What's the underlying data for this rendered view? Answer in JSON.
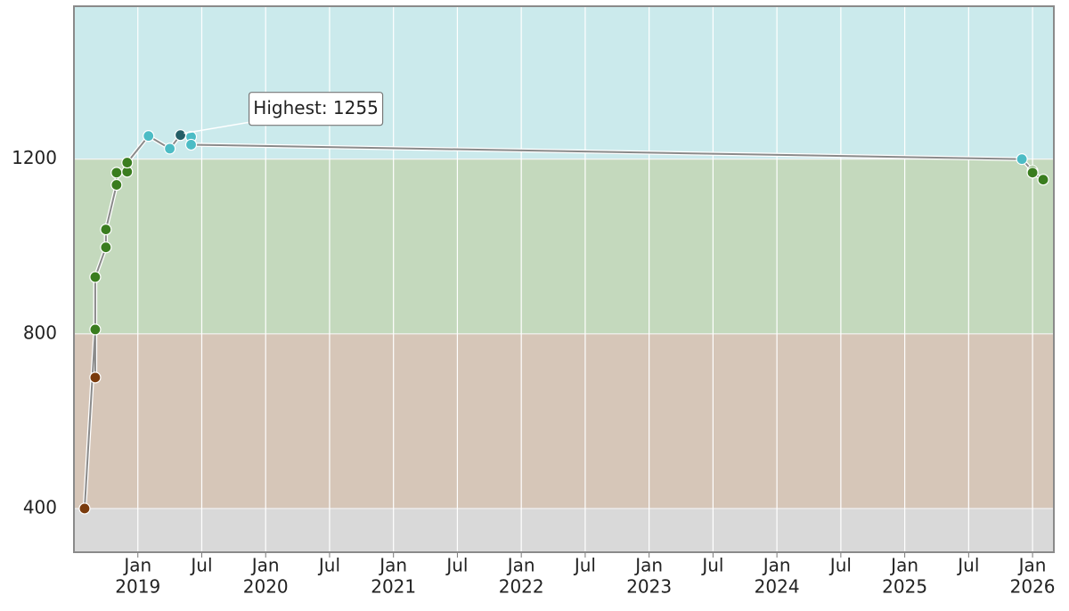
{
  "chart_data": {
    "type": "line",
    "x": [
      "2018-08",
      "2018-09",
      "2018-09",
      "2018-09",
      "2018-10",
      "2018-10",
      "2018-11",
      "2018-11",
      "2018-12",
      "2018-12",
      "2019-02",
      "2019-04",
      "2019-05",
      "2019-06",
      "2019-06",
      "2025-12",
      "2026-01",
      "2026-01",
      "2026-02"
    ],
    "series": [
      {
        "color": "#8a8a8a",
        "values": [
          400,
          810,
          700,
          930,
          998,
          1039,
          1141,
          1169,
          1171,
          1192,
          1253,
          1224,
          1255,
          1251,
          1233,
          1200,
          1173,
          1169,
          1153
        ]
      }
    ],
    "xlim": [
      "2018-07",
      "2026-03"
    ],
    "xticks": [
      {
        "value": "2019-01",
        "label": "Jan",
        "year": "2019"
      },
      {
        "value": "2019-07",
        "label": "Jul"
      },
      {
        "value": "2020-01",
        "label": "Jan",
        "year": "2020"
      },
      {
        "value": "2020-07",
        "label": "Jul"
      },
      {
        "value": "2021-01",
        "label": "Jan",
        "year": "2021"
      },
      {
        "value": "2021-07",
        "label": "Jul"
      },
      {
        "value": "2022-01",
        "label": "Jan",
        "year": "2022"
      },
      {
        "value": "2022-07",
        "label": "Jul"
      },
      {
        "value": "2023-01",
        "label": "Jan",
        "year": "2023"
      },
      {
        "value": "2023-07",
        "label": "Jul"
      },
      {
        "value": "2024-01",
        "label": "Jan",
        "year": "2024"
      },
      {
        "value": "2024-07",
        "label": "Jul"
      },
      {
        "value": "2025-01",
        "label": "Jan",
        "year": "2025"
      },
      {
        "value": "2025-07",
        "label": "Jul"
      },
      {
        "value": "2026-01",
        "label": "Jan",
        "year": "2026"
      }
    ],
    "ylim": [
      300,
      1550
    ],
    "yticks": [
      400,
      800,
      1200
    ],
    "grid": true,
    "bands": [
      {
        "from": 300,
        "to": 400,
        "color": "#d9d9d9",
        "point_color": "#666666"
      },
      {
        "from": 400,
        "to": 800,
        "color": "#d6c6b8",
        "point_color": "#7a3b0d"
      },
      {
        "from": 800,
        "to": 1200,
        "color": "#c4d9bd",
        "point_color": "#3a7d1f"
      },
      {
        "from": 1200,
        "to": 1550,
        "color": "#cbeaec",
        "point_color": "#4cbcc5"
      }
    ],
    "annotation": {
      "text": "Highest: 1255",
      "point": 12,
      "color": "#245e66"
    }
  }
}
